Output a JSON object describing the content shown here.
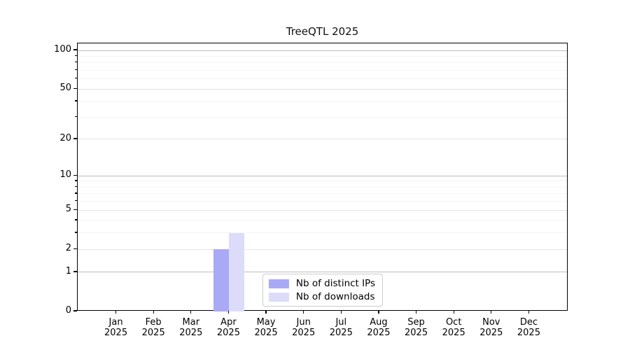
{
  "chart_data": {
    "type": "bar",
    "title": "TreeQTL 2025",
    "categories": [
      {
        "month": "Jan",
        "year": "2025"
      },
      {
        "month": "Feb",
        "year": "2025"
      },
      {
        "month": "Mar",
        "year": "2025"
      },
      {
        "month": "Apr",
        "year": "2025"
      },
      {
        "month": "May",
        "year": "2025"
      },
      {
        "month": "Jun",
        "year": "2025"
      },
      {
        "month": "Jul",
        "year": "2025"
      },
      {
        "month": "Aug",
        "year": "2025"
      },
      {
        "month": "Sep",
        "year": "2025"
      },
      {
        "month": "Oct",
        "year": "2025"
      },
      {
        "month": "Nov",
        "year": "2025"
      },
      {
        "month": "Dec",
        "year": "2025"
      }
    ],
    "series": [
      {
        "name": "Nb of distinct IPs",
        "color": "#a9a9f6",
        "values": [
          0,
          0,
          0,
          2,
          0,
          0,
          0,
          0,
          0,
          0,
          0,
          0
        ]
      },
      {
        "name": "Nb of downloads",
        "color": "#dcdcfa",
        "values": [
          0,
          0,
          0,
          3,
          0,
          0,
          0,
          0,
          0,
          0,
          0,
          0
        ]
      }
    ],
    "yscale": "log1p",
    "ylim": [
      0,
      113.4
    ],
    "yticks_major": [
      0,
      1,
      2,
      5,
      10,
      20,
      50,
      100
    ],
    "yticks_decade": [
      1,
      10,
      100
    ],
    "yticks_minor": [
      3,
      4,
      6,
      7,
      8,
      9,
      30,
      40,
      60,
      70,
      80,
      90
    ],
    "grid": "horizontal, major and minor, on",
    "legend_position": "lower center",
    "colors": {
      "axis": "#000000",
      "grid_decade": "#bdbdbd",
      "grid_major": "#e3e3e3",
      "grid_minor": "#f3f3f3",
      "background": "#ffffff"
    }
  }
}
